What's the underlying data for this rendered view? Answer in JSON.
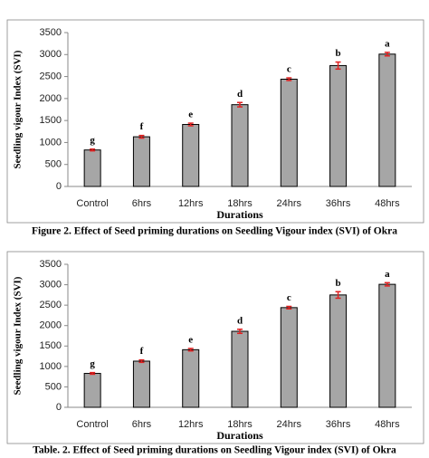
{
  "chart_data": [
    {
      "type": "bar",
      "title": "Figure 2. Effect of Seed priming durations on Seedling Vigour index (SVI) of Okra",
      "x_label": "Durations",
      "y_label": "Seedling vigour Index (SVI)",
      "categories": [
        "Control",
        "6hrs",
        "12hrs",
        "18hrs",
        "24hrs",
        "36hrs",
        "48hrs"
      ],
      "series": [
        {
          "color": "#a6a6a6",
          "values": [
            830,
            1130,
            1410,
            1860,
            2440,
            2750,
            3010
          ],
          "errors": [
            20,
            30,
            30,
            50,
            30,
            80,
            40
          ]
        }
      ],
      "annotations": [
        "g",
        "f",
        "e",
        "d",
        "c",
        "b",
        "a"
      ],
      "ylim": [
        0,
        3500
      ],
      "yticks": [
        0,
        500,
        1000,
        1500,
        2000,
        2500,
        3000,
        3500
      ],
      "error_color": "#e02020"
    },
    {
      "type": "bar",
      "title": "Table. 2. Effect of Seed priming durations on Seedling Vigour index (SVI) of Okra",
      "x_label": "Durations",
      "y_label": "Seedling vigour Index (SVI)",
      "categories": [
        "Control",
        "6hrs",
        "12hrs",
        "18hrs",
        "24hrs",
        "36hrs",
        "48hrs"
      ],
      "series": [
        {
          "color": "#a6a6a6",
          "values": [
            830,
            1130,
            1410,
            1860,
            2440,
            2750,
            3010
          ],
          "errors": [
            20,
            30,
            30,
            50,
            30,
            80,
            40
          ]
        }
      ],
      "annotations": [
        "g",
        "f",
        "e",
        "d",
        "c",
        "b",
        "a"
      ],
      "ylim": [
        0,
        3500
      ],
      "yticks": [
        0,
        500,
        1000,
        1500,
        2000,
        2500,
        3000,
        3500
      ],
      "error_color": "#e02020"
    }
  ]
}
